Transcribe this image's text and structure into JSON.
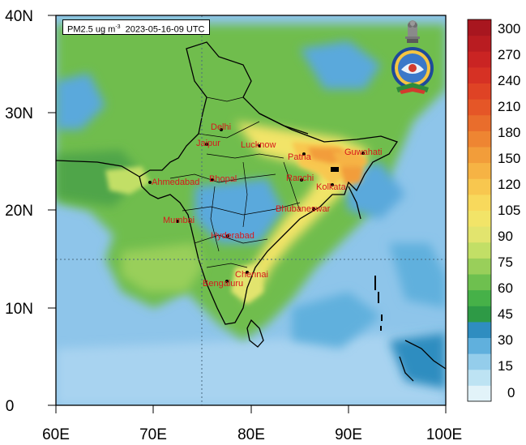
{
  "title": {
    "variable": "PM2.5 ug m",
    "unit_exponent": "-3",
    "datetime": "2023-05-16-09 UTC"
  },
  "axes": {
    "x_ticks": [
      "60E",
      "70E",
      "80E",
      "90E",
      "100E"
    ],
    "y_ticks": [
      "40N",
      "30N",
      "20N",
      "10N",
      "0"
    ],
    "x_range_deg": [
      60,
      100
    ],
    "y_range_deg": [
      0,
      40
    ],
    "reference_grid_lines": {
      "longitude": 75,
      "latitude": 15
    }
  },
  "colorbar": {
    "labels": [
      "300",
      "270",
      "240",
      "210",
      "180",
      "150",
      "120",
      "105",
      "90",
      "75",
      "60",
      "45",
      "30",
      "15",
      "0"
    ],
    "level_colors": [
      "#e2f3f9",
      "#bde3f3",
      "#94cdeb",
      "#60b0dd",
      "#2f8dc0",
      "#2e9a46",
      "#46b148",
      "#6ec04f",
      "#99cf5a",
      "#c2df66",
      "#e2e46e",
      "#f2e468",
      "#f8d95c",
      "#f8c74f",
      "#f6b344",
      "#f29d3a",
      "#ee8532",
      "#e96d2c",
      "#e55627",
      "#df4325",
      "#d63124",
      "#ca2423",
      "#b91c21",
      "#a8161f"
    ]
  },
  "cities": [
    {
      "name": "Delhi"
    },
    {
      "name": "Jaipur"
    },
    {
      "name": "Lucknow"
    },
    {
      "name": "Patna"
    },
    {
      "name": "Guwahati"
    },
    {
      "name": "Ahmedabad"
    },
    {
      "name": "Bhopal"
    },
    {
      "name": "Ranchi"
    },
    {
      "name": "Kolkata"
    },
    {
      "name": "Bhubaneswar"
    },
    {
      "name": "Mumbai"
    },
    {
      "name": "Hyderabad"
    },
    {
      "name": "Chennai"
    },
    {
      "name": "Bengaluru"
    }
  ],
  "colors": {
    "ocean_light": "#8ec5ea",
    "land_green": "#7cc24e",
    "haze_yellow": "#f4dd62",
    "haze_orange": "#f29d3a",
    "city_label": "#d7191c"
  },
  "icons": [
    "national-emblem-icon",
    "imd-logo-icon"
  ]
}
